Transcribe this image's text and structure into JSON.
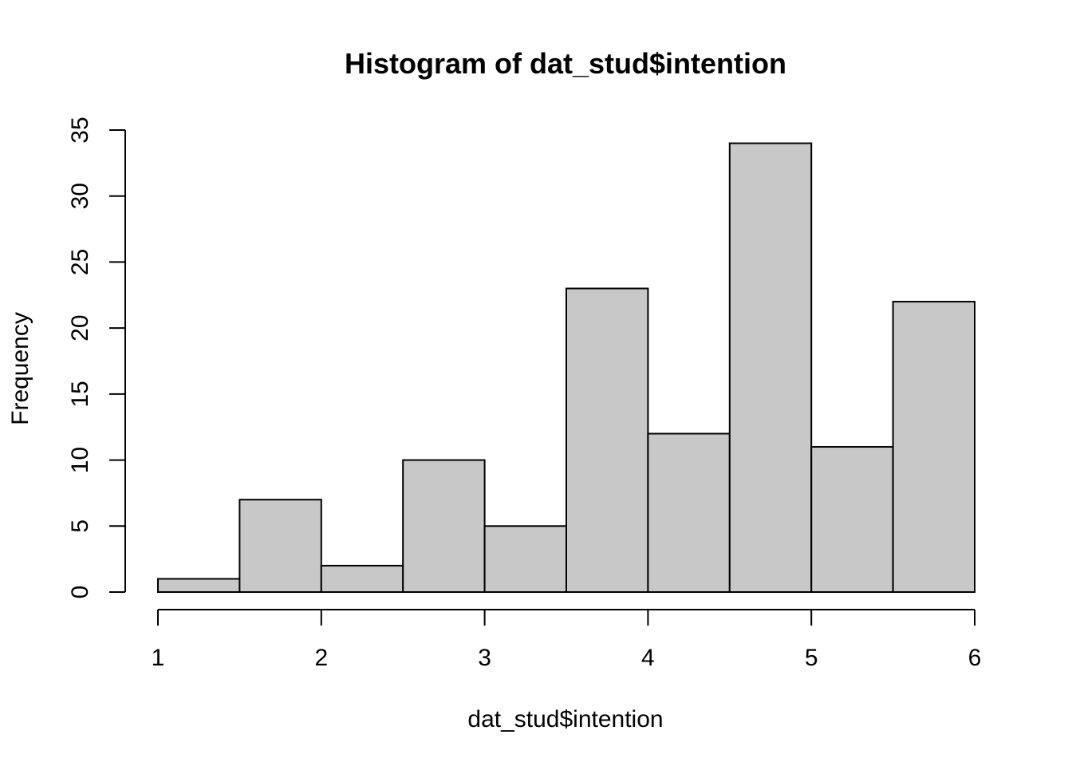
{
  "chart_data": {
    "type": "bar",
    "title": "Histogram of dat_stud$intention",
    "xlabel": "dat_stud$intention",
    "ylabel": "Frequency",
    "bins": [
      {
        "x0": 1.0,
        "x1": 1.5,
        "count": 1
      },
      {
        "x0": 1.5,
        "x1": 2.0,
        "count": 7
      },
      {
        "x0": 2.0,
        "x1": 2.5,
        "count": 2
      },
      {
        "x0": 2.5,
        "x1": 3.0,
        "count": 10
      },
      {
        "x0": 3.0,
        "x1": 3.5,
        "count": 5
      },
      {
        "x0": 3.5,
        "x1": 4.0,
        "count": 23
      },
      {
        "x0": 4.0,
        "x1": 4.5,
        "count": 12
      },
      {
        "x0": 4.5,
        "x1": 5.0,
        "count": 34
      },
      {
        "x0": 5.0,
        "x1": 5.5,
        "count": 11
      },
      {
        "x0": 5.5,
        "x1": 6.0,
        "count": 22
      }
    ],
    "xlim": [
      1,
      6
    ],
    "ylim": [
      0,
      35
    ],
    "xticks": [
      1,
      2,
      3,
      4,
      5,
      6
    ],
    "yticks": [
      0,
      5,
      10,
      15,
      20,
      25,
      30,
      35
    ],
    "bar_color": "#c8c8c8",
    "grid": false,
    "legend": false
  }
}
